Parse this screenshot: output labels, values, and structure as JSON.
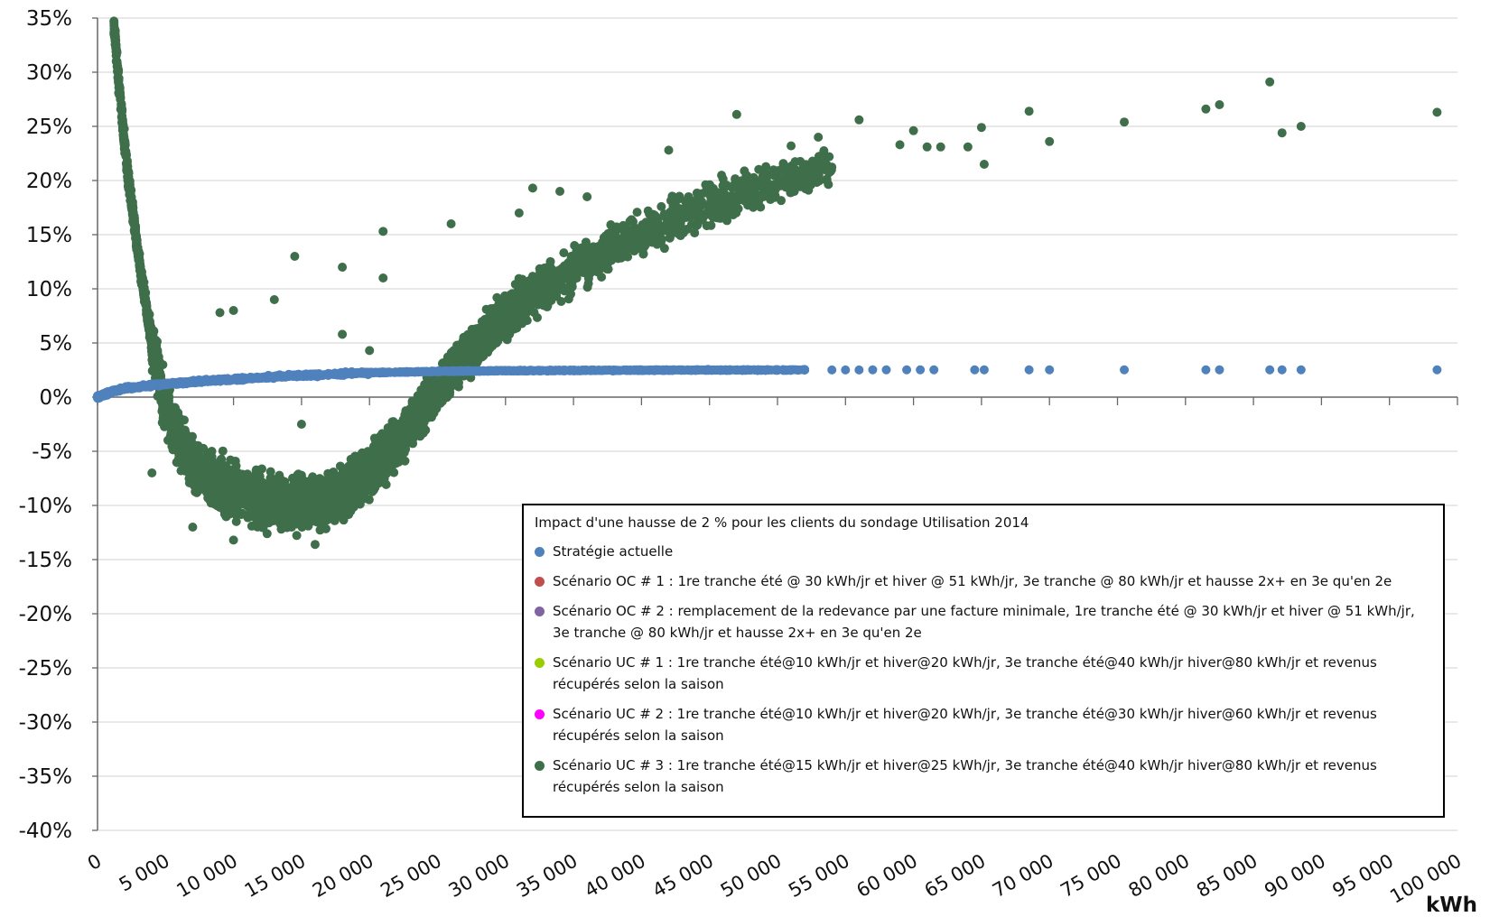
{
  "chart_data": {
    "type": "scatter",
    "xlabel": "kWh",
    "ylabel": "",
    "xlim": [
      0,
      100000
    ],
    "ylim": [
      -40,
      35
    ],
    "x_ticks": [
      0,
      5000,
      10000,
      15000,
      20000,
      25000,
      30000,
      35000,
      40000,
      45000,
      50000,
      55000,
      60000,
      65000,
      70000,
      75000,
      80000,
      85000,
      90000,
      95000,
      100000
    ],
    "x_tick_labels": [
      "0",
      "5 000",
      "10 000",
      "15 000",
      "20 000",
      "25 000",
      "30 000",
      "35 000",
      "40 000",
      "45 000",
      "50 000",
      "55 000",
      "60 000",
      "65 000",
      "70 000",
      "75 000",
      "80 000",
      "85 000",
      "90 000",
      "95 000",
      "100 000"
    ],
    "y_ticks": [
      35,
      30,
      25,
      20,
      15,
      10,
      5,
      0,
      -5,
      -10,
      -15,
      -20,
      -25,
      -30,
      -35,
      -40
    ],
    "y_tick_labels": [
      "35%",
      "30%",
      "25%",
      "20%",
      "15%",
      "10%",
      "5%",
      "0%",
      "-5%",
      "-10%",
      "-15%",
      "-20%",
      "-25%",
      "-30%",
      "-35%",
      "-40%"
    ],
    "grid": "horizontal",
    "legend_title": "Impact d'une hausse de 2 % pour les clients du sondage Utilisation 2014",
    "legend_placement": "lower-right",
    "series": [
      {
        "name": "Stratégie actuelle",
        "color": "#4f81bd",
        "points": [
          [
            0,
            0.0
          ],
          [
            1000,
            0.5
          ],
          [
            2000,
            0.8
          ],
          [
            4000,
            1.1
          ],
          [
            6000,
            1.3
          ],
          [
            8000,
            1.5
          ],
          [
            10000,
            1.65
          ],
          [
            12000,
            1.8
          ],
          [
            14000,
            1.95
          ],
          [
            16000,
            2.05
          ],
          [
            18000,
            2.15
          ],
          [
            20000,
            2.25
          ],
          [
            22000,
            2.3
          ],
          [
            24000,
            2.35
          ],
          [
            26000,
            2.4
          ],
          [
            28000,
            2.42
          ],
          [
            30000,
            2.44
          ],
          [
            32000,
            2.45
          ],
          [
            35000,
            2.47
          ],
          [
            38000,
            2.48
          ],
          [
            41000,
            2.49
          ],
          [
            44000,
            2.5
          ],
          [
            47000,
            2.5
          ],
          [
            50000,
            2.51
          ],
          [
            52000,
            2.51
          ],
          [
            54000,
            2.51
          ],
          [
            55000,
            2.51
          ],
          [
            56000,
            2.51
          ],
          [
            57000,
            2.52
          ],
          [
            58000,
            2.52
          ],
          [
            59500,
            2.52
          ],
          [
            60500,
            2.52
          ],
          [
            61500,
            2.52
          ],
          [
            64500,
            2.52
          ],
          [
            65200,
            2.52
          ],
          [
            68500,
            2.52
          ],
          [
            70000,
            2.52
          ],
          [
            75500,
            2.52
          ],
          [
            81500,
            2.52
          ],
          [
            82500,
            2.52
          ],
          [
            86200,
            2.52
          ],
          [
            87100,
            2.52
          ],
          [
            88500,
            2.52
          ],
          [
            98500,
            2.52
          ]
        ]
      },
      {
        "name": "Scénario OC # 1 : 1re tranche été @ 30 kWh/jr et hiver @ 51 kWh/jr, 3e tranche @ 80 kWh/jr et hausse 2x+ en 3e qu'en 2e",
        "color": "#c0504d",
        "points": []
      },
      {
        "name": "Scénario OC # 2 : remplacement de la redevance par une facture minimale, 1re tranche été @ 30 kWh/jr et hiver @ 51 kWh/jr, 3e tranche @ 80 kWh/jr et hausse 2x+ en 3e qu'en 2e",
        "color": "#8064a2",
        "points": []
      },
      {
        "name": "Scénario UC # 1 : 1re tranche été@10 kWh/jr et hiver@20 kWh/jr, 3e tranche été@40 kWh/jr hiver@80 kWh/jr et revenus récupérés selon la saison",
        "color": "#9acd00",
        "points": []
      },
      {
        "name": "Scénario UC # 2 : 1re tranche été@10 kWh/jr et hiver@20 kWh/jr, 3e tranche été@30 kWh/jr hiver@60 kWh/jr et revenus récupérés selon la saison",
        "color": "#ff00ff",
        "points": []
      },
      {
        "name": "Scénario UC # 3 : 1re tranche été@15 kWh/jr et hiver@25 kWh/jr, 3e tranche été@40 kWh/jr hiver@80 kWh/jr et revenus récupérés selon la saison",
        "color": "#3f6e4a",
        "trend": [
          [
            1200,
            34.5
          ],
          [
            1500,
            30
          ],
          [
            1800,
            26
          ],
          [
            2100,
            22
          ],
          [
            2500,
            18
          ],
          [
            3000,
            13
          ],
          [
            3500,
            9
          ],
          [
            4000,
            5
          ],
          [
            4500,
            2
          ],
          [
            5000,
            -1
          ],
          [
            6000,
            -4
          ],
          [
            7000,
            -6
          ],
          [
            8000,
            -7.5
          ],
          [
            10000,
            -8.8
          ],
          [
            12000,
            -9.5
          ],
          [
            14000,
            -9.8
          ],
          [
            16000,
            -9.6
          ],
          [
            18000,
            -8.8
          ],
          [
            20000,
            -7
          ],
          [
            22000,
            -4
          ],
          [
            24000,
            -1
          ],
          [
            26000,
            2.5
          ],
          [
            28000,
            5
          ],
          [
            30000,
            7.5
          ],
          [
            32000,
            9.5
          ],
          [
            34000,
            11
          ],
          [
            36000,
            12.5
          ],
          [
            38000,
            14
          ],
          [
            40000,
            15.2
          ],
          [
            42000,
            16.3
          ],
          [
            44000,
            17.3
          ],
          [
            46000,
            18.2
          ],
          [
            48000,
            19
          ],
          [
            50000,
            19.8
          ],
          [
            52000,
            20.5
          ],
          [
            54000,
            21.2
          ]
        ],
        "points": [
          [
            9000,
            7.8
          ],
          [
            10000,
            8.0
          ],
          [
            13000,
            9.0
          ],
          [
            14500,
            13.0
          ],
          [
            18000,
            12.0
          ],
          [
            21000,
            11.0
          ],
          [
            21000,
            15.3
          ],
          [
            26000,
            16.0
          ],
          [
            31000,
            17.0
          ],
          [
            32000,
            19.3
          ],
          [
            34000,
            19.0
          ],
          [
            36000,
            18.5
          ],
          [
            42000,
            22.8
          ],
          [
            47000,
            26.1
          ],
          [
            51000,
            23.2
          ],
          [
            53000,
            24.0
          ],
          [
            56000,
            25.6
          ],
          [
            59000,
            23.3
          ],
          [
            60000,
            24.6
          ],
          [
            61000,
            23.1
          ],
          [
            62000,
            23.1
          ],
          [
            64000,
            23.1
          ],
          [
            65000,
            24.9
          ],
          [
            65200,
            21.5
          ],
          [
            68500,
            26.4
          ],
          [
            70000,
            23.6
          ],
          [
            75500,
            25.4
          ],
          [
            81500,
            26.6
          ],
          [
            82500,
            27.0
          ],
          [
            86200,
            29.1
          ],
          [
            87100,
            24.4
          ],
          [
            88500,
            25.0
          ],
          [
            98500,
            26.3
          ],
          [
            4000,
            -7.0
          ],
          [
            7000,
            -12.0
          ],
          [
            10000,
            -13.2
          ],
          [
            16000,
            -13.6
          ],
          [
            18000,
            5.8
          ],
          [
            20000,
            4.3
          ],
          [
            15000,
            -2.5
          ]
        ]
      }
    ]
  }
}
